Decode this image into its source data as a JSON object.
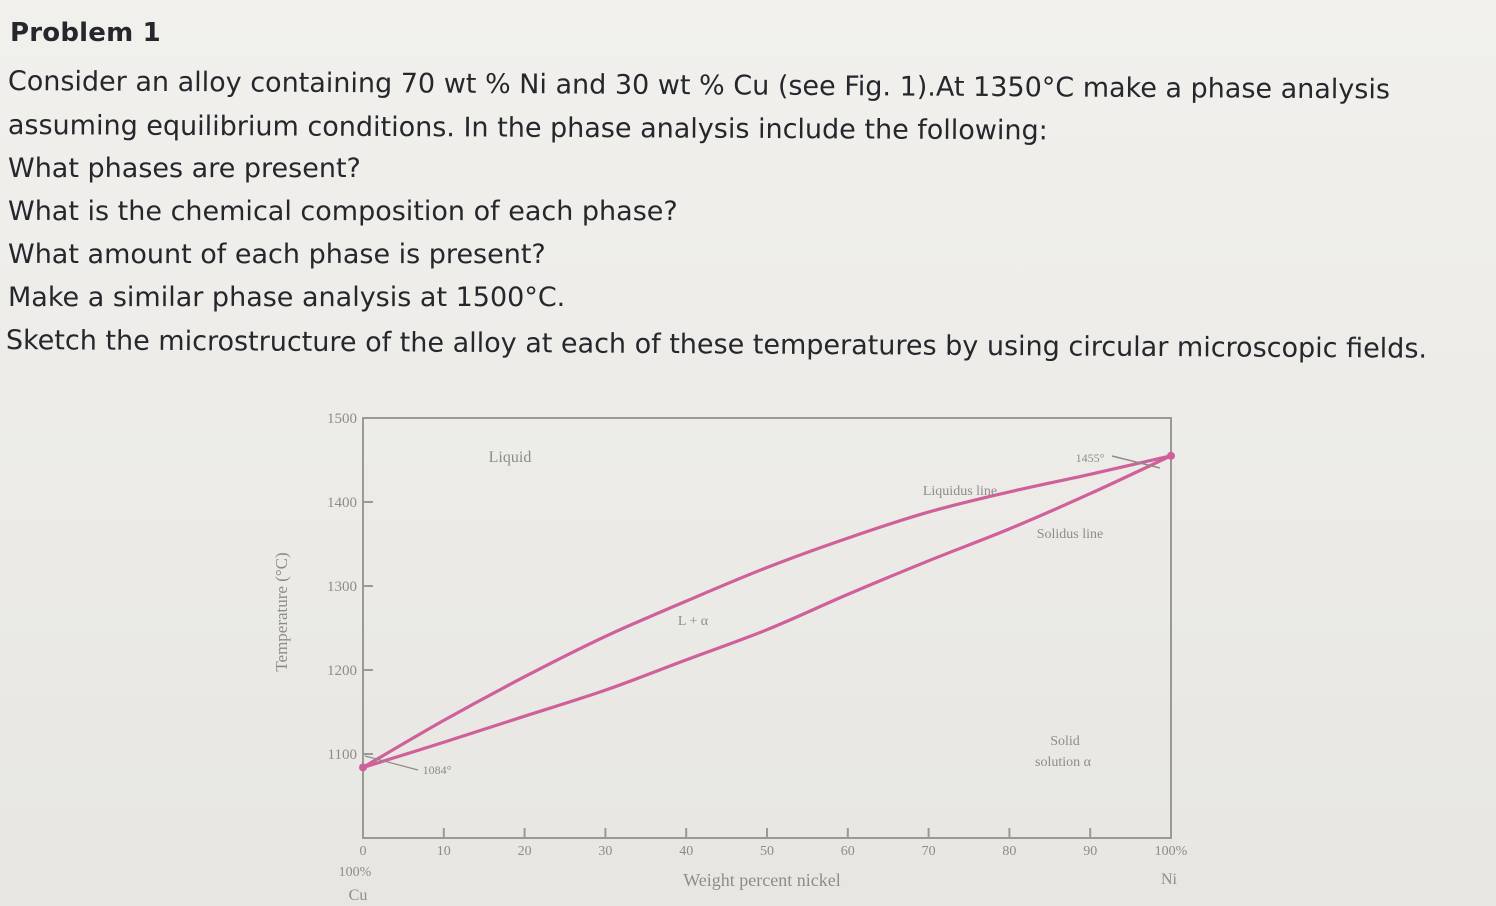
{
  "problem": {
    "title": "Problem 1",
    "lines": [
      "Consider an alloy containing 70 wt % Ni and 30 wt % Cu (see Fig. 1).At 1350°C make a phase analysis",
      "assuming equilibrium conditions. In the phase analysis include the following:",
      "What phases are present?",
      "What is the chemical composition of each phase?",
      "What amount of each phase is present?",
      "Make a similar phase analysis at 1500°C.",
      "Sketch the microstructure of the alloy at each of these temperatures by using circular microscopic fields."
    ]
  },
  "chart_data": {
    "type": "line",
    "xlabel": "Weight percent nickel",
    "ylabel": "Temperature (°C)",
    "xlim": [
      0,
      100
    ],
    "ylim": [
      1000,
      1500
    ],
    "x_ticks": [
      "0",
      "10",
      "20",
      "30",
      "40",
      "50",
      "60",
      "70",
      "80",
      "90",
      "100%"
    ],
    "y_ticks": [
      "1500",
      "1400",
      "1300",
      "1200",
      "1100"
    ],
    "left_end_label": [
      "100%",
      "Cu"
    ],
    "right_end_label": [
      "Ni"
    ],
    "series": [
      {
        "name": "Liquidus line",
        "x": [
          0,
          10,
          20,
          30,
          40,
          50,
          60,
          70,
          80,
          90,
          100
        ],
        "y": [
          1084,
          1140,
          1192,
          1240,
          1282,
          1322,
          1357,
          1388,
          1412,
          1433,
          1455
        ]
      },
      {
        "name": "Solidus line",
        "x": [
          0,
          10,
          20,
          30,
          40,
          50,
          60,
          70,
          80,
          90,
          100
        ],
        "y": [
          1084,
          1114,
          1145,
          1176,
          1212,
          1248,
          1290,
          1330,
          1368,
          1410,
          1455
        ]
      }
    ],
    "annotations": {
      "liquid": "Liquid",
      "two_phase": "L + α",
      "solid_line1": "Solid",
      "solid_line2": "solution α",
      "melt_ni": "1455°",
      "melt_cu": "1084°"
    },
    "line_color": "#d0609a"
  }
}
